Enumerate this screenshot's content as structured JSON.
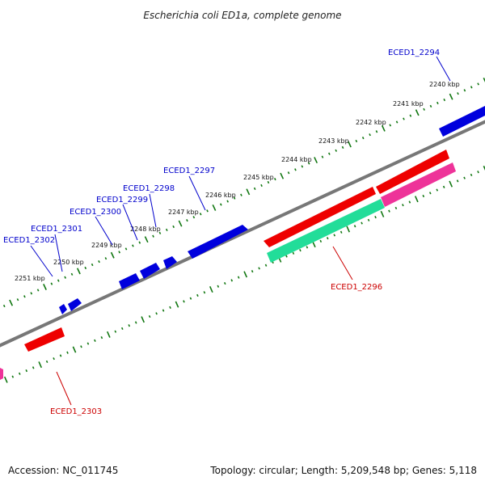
{
  "title": "Escherichia coli ED1a, complete genome",
  "ticks": [
    {
      "label": "2240 kbp"
    },
    {
      "label": "2241 kbp"
    },
    {
      "label": "2242 kbp"
    },
    {
      "label": "2243 kbp"
    },
    {
      "label": "2244 kbp"
    },
    {
      "label": "2245 kbp"
    },
    {
      "label": "2246 kbp"
    },
    {
      "label": "2247 kbp"
    },
    {
      "label": "2248 kbp"
    },
    {
      "label": "2249 kbp"
    },
    {
      "label": "2250 kbp"
    },
    {
      "label": "2251 kbp"
    }
  ],
  "genes": [
    {
      "name": "ECED1_2294",
      "strand": "+"
    },
    {
      "name": "ECED1_2296",
      "strand": "-"
    },
    {
      "name": "ECED1_2297",
      "strand": "+"
    },
    {
      "name": "ECED1_2298",
      "strand": "+"
    },
    {
      "name": "ECED1_2299",
      "strand": "+"
    },
    {
      "name": "ECED1_2300",
      "strand": "+"
    },
    {
      "name": "ECED1_2301",
      "strand": "+"
    },
    {
      "name": "ECED1_2302",
      "strand": "+"
    },
    {
      "name": "ECED1_2303",
      "strand": "-"
    }
  ],
  "colors": {
    "forward_gene": "#0000dd",
    "reverse_gene": "#ee0000",
    "reverse_other": "#ee3399",
    "feature_green": "#22dd99",
    "backbone": "#777777",
    "tick": "#117711",
    "forward_label": "#0000cc",
    "reverse_label": "#cc0000"
  },
  "footer": {
    "accession": "Accession: NC_011745",
    "topology": "Topology: circular; Length: 5,209,548 bp; Genes: 5,118"
  }
}
